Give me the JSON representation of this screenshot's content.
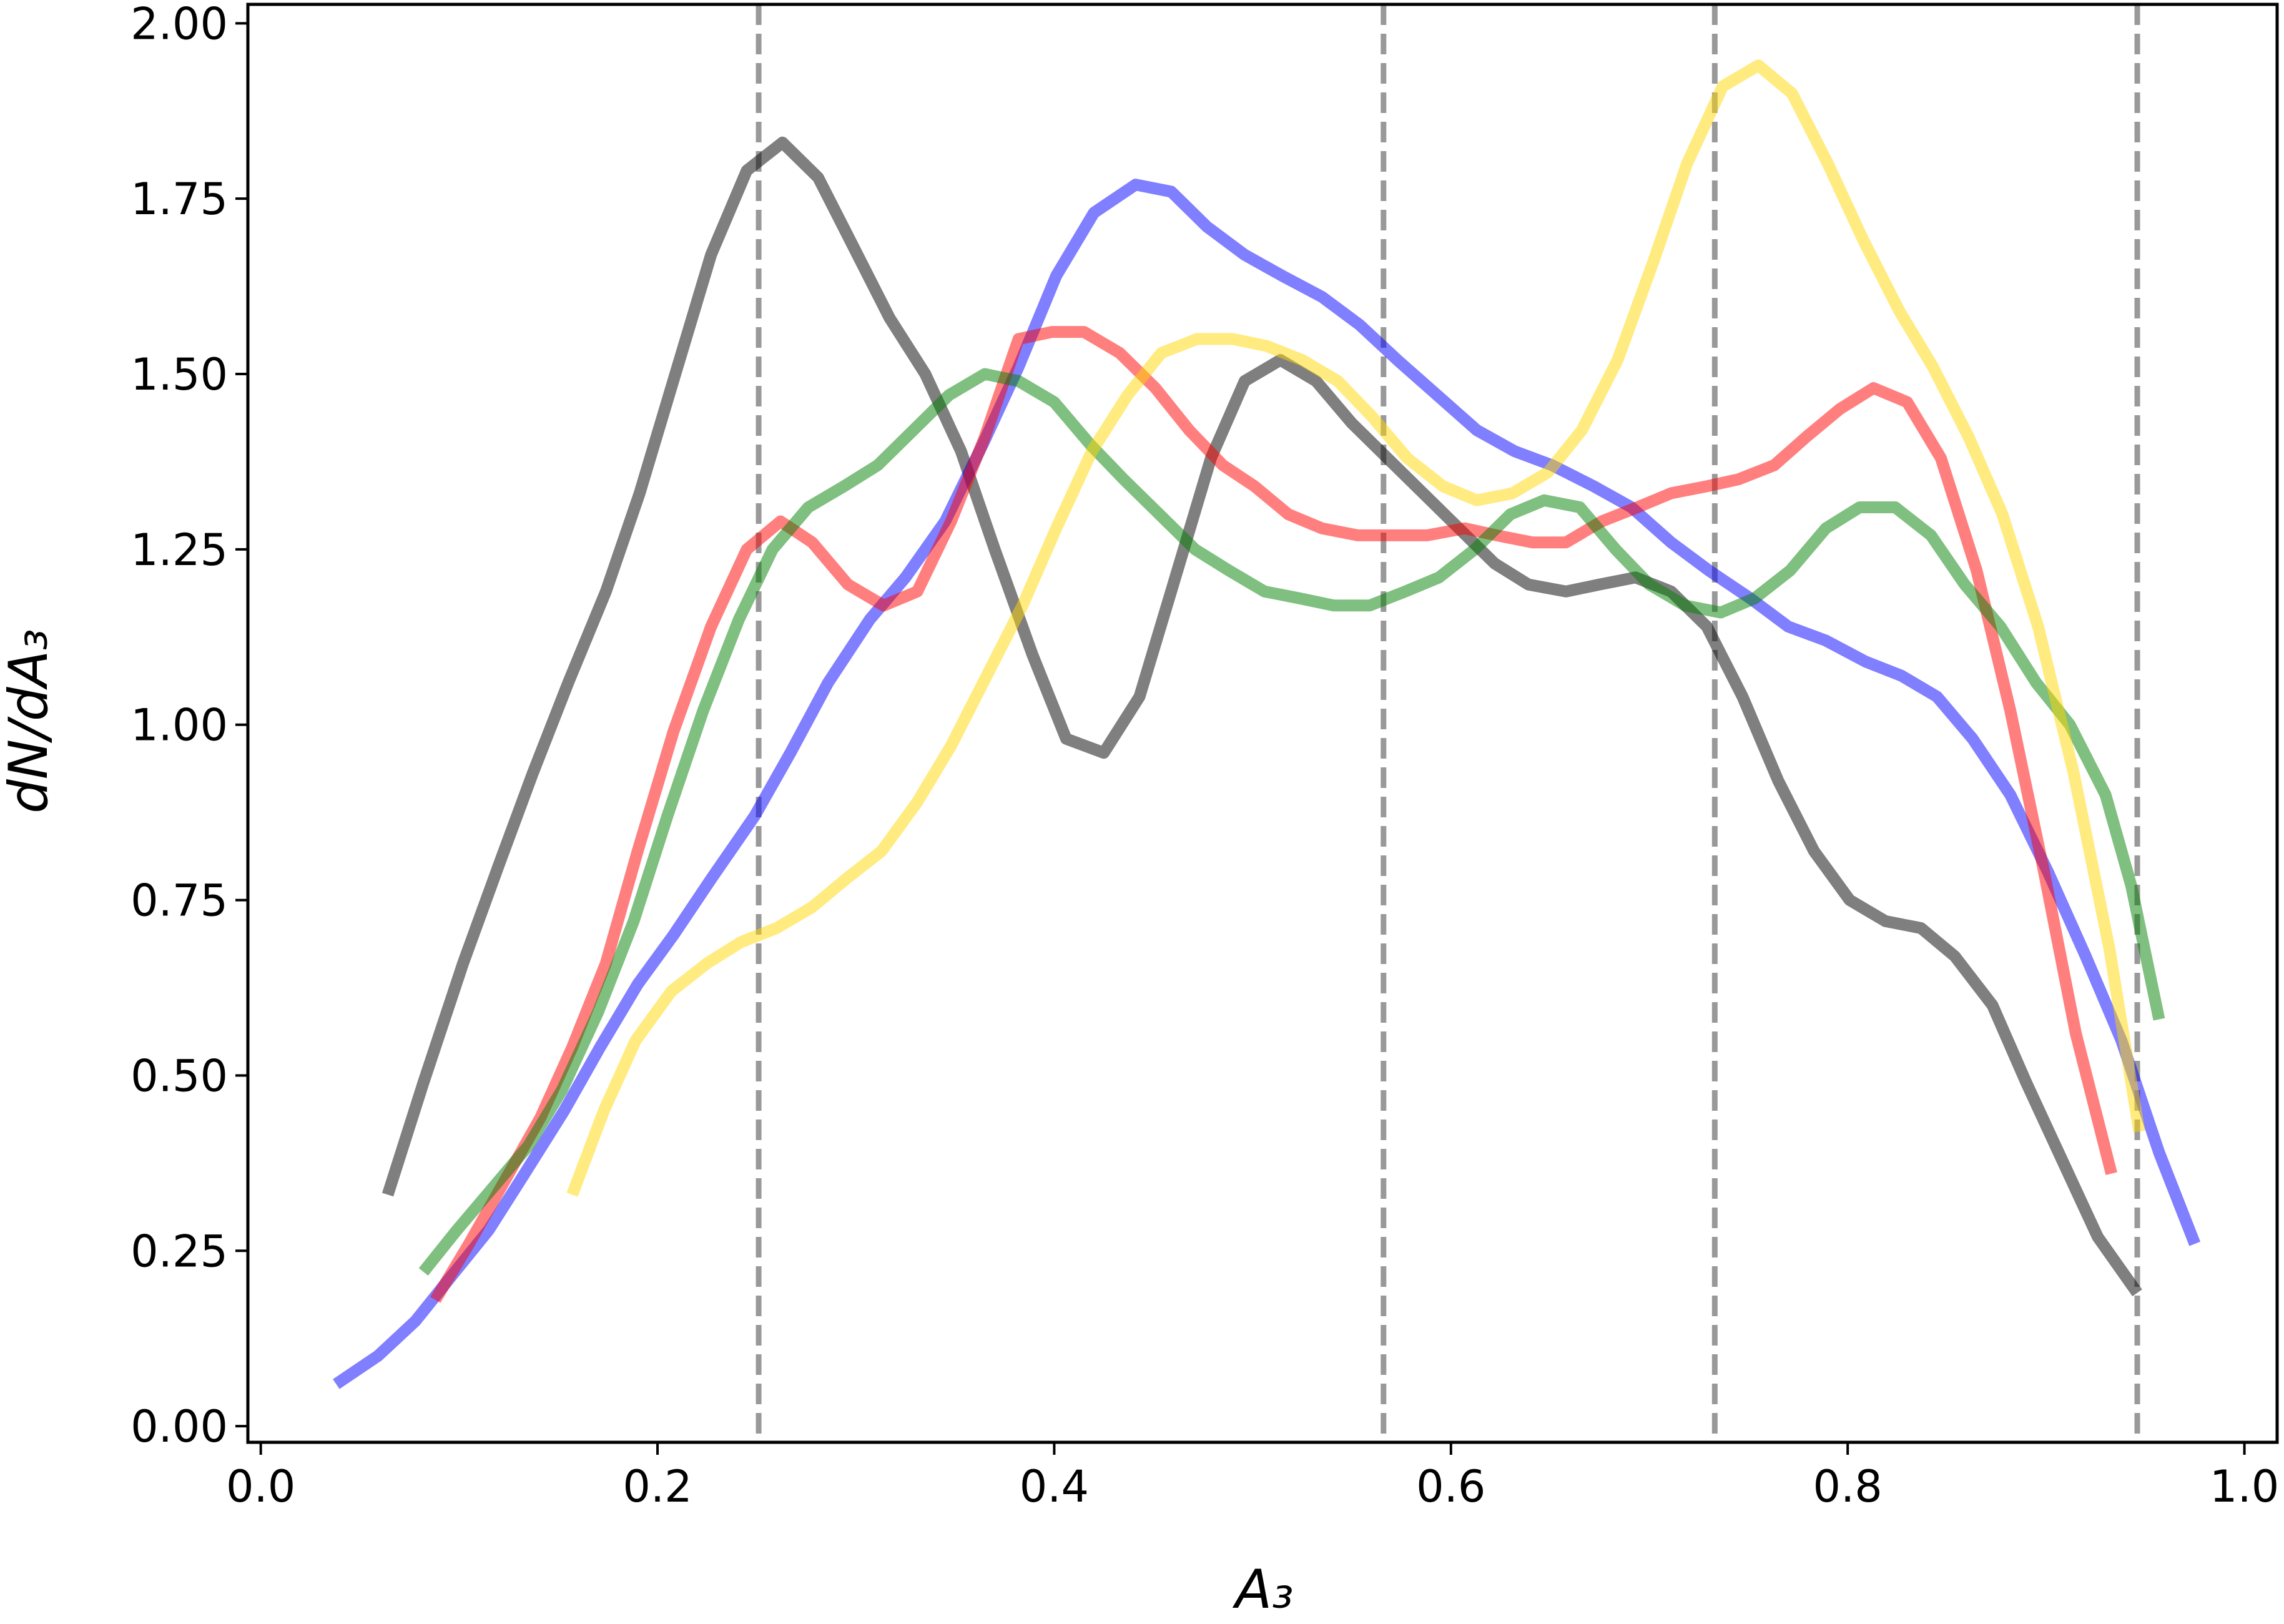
{
  "chart_data": {
    "type": "line",
    "xlabel": "A₃",
    "ylabel": "dN/dA₃",
    "xlim": [
      -0.0065,
      1.0165
    ],
    "ylim": [
      -0.023,
      2.027
    ],
    "xticks": [
      {
        "value": 0,
        "label": "0.0"
      },
      0.2,
      0.4,
      0.6,
      0.8,
      {
        "value": 1,
        "label": "1.0"
      }
    ],
    "yticks": [
      {
        "value": 0,
        "label": "0.00"
      },
      0.25,
      {
        "value": 0.5,
        "label": "0.50"
      },
      0.75,
      {
        "value": 1,
        "label": "1.00"
      },
      1.25,
      {
        "value": 1.5,
        "label": "1.50"
      },
      1.75,
      {
        "value": 2,
        "label": "2.00"
      }
    ],
    "vlines": [
      0.251,
      0.566,
      0.733,
      0.946
    ],
    "vline_color": "#999999",
    "series": [
      {
        "color": "#000000",
        "x": [
          0.064,
          0.082,
          0.102,
          0.12,
          0.137,
          0.155,
          0.174,
          0.191,
          0.209,
          0.227,
          0.245,
          0.263,
          0.281,
          0.299,
          0.317,
          0.335,
          0.353,
          0.37,
          0.389,
          0.406,
          0.425,
          0.443,
          0.46,
          0.479,
          0.496,
          0.514,
          0.532,
          0.55,
          0.568,
          0.586,
          0.604,
          0.622,
          0.639,
          0.658,
          0.675,
          0.693,
          0.711,
          0.729,
          0.747,
          0.765,
          0.783,
          0.801,
          0.819,
          0.837,
          0.854,
          0.873,
          0.89,
          0.908,
          0.926,
          0.946
        ],
        "values": [
          0.33,
          0.49,
          0.66,
          0.8,
          0.93,
          1.06,
          1.19,
          1.33,
          1.5,
          1.67,
          1.79,
          1.83,
          1.78,
          1.68,
          1.58,
          1.5,
          1.39,
          1.25,
          1.1,
          0.98,
          0.96,
          1.04,
          1.2,
          1.38,
          1.49,
          1.52,
          1.49,
          1.43,
          1.38,
          1.33,
          1.28,
          1.23,
          1.2,
          1.19,
          1.2,
          1.21,
          1.19,
          1.14,
          1.04,
          0.92,
          0.82,
          0.75,
          0.72,
          0.71,
          0.67,
          0.6,
          0.49,
          0.38,
          0.27,
          0.19
        ]
      },
      {
        "color": "#0000ff",
        "x": [
          0.038,
          0.059,
          0.078,
          0.095,
          0.115,
          0.133,
          0.153,
          0.171,
          0.19,
          0.208,
          0.227,
          0.249,
          0.267,
          0.286,
          0.307,
          0.325,
          0.345,
          0.364,
          0.382,
          0.401,
          0.42,
          0.441,
          0.459,
          0.477,
          0.496,
          0.515,
          0.535,
          0.554,
          0.573,
          0.593,
          0.613,
          0.632,
          0.651,
          0.672,
          0.691,
          0.711,
          0.73,
          0.751,
          0.77,
          0.789,
          0.809,
          0.827,
          0.845,
          0.863,
          0.882,
          0.901,
          0.92,
          0.938,
          0.957,
          0.975
        ],
        "values": [
          0.06,
          0.1,
          0.15,
          0.21,
          0.28,
          0.36,
          0.45,
          0.54,
          0.63,
          0.7,
          0.78,
          0.87,
          0.96,
          1.06,
          1.15,
          1.21,
          1.29,
          1.4,
          1.51,
          1.64,
          1.73,
          1.77,
          1.76,
          1.71,
          1.67,
          1.64,
          1.61,
          1.57,
          1.52,
          1.47,
          1.42,
          1.39,
          1.37,
          1.34,
          1.31,
          1.26,
          1.22,
          1.18,
          1.14,
          1.12,
          1.09,
          1.07,
          1.04,
          0.98,
          0.9,
          0.79,
          0.67,
          0.55,
          0.39,
          0.26
        ]
      },
      {
        "color": "#ff0000",
        "x": [
          0.088,
          0.105,
          0.123,
          0.141,
          0.157,
          0.174,
          0.19,
          0.208,
          0.227,
          0.245,
          0.262,
          0.278,
          0.296,
          0.314,
          0.331,
          0.348,
          0.365,
          0.382,
          0.399,
          0.415,
          0.433,
          0.451,
          0.468,
          0.485,
          0.501,
          0.518,
          0.535,
          0.553,
          0.571,
          0.588,
          0.607,
          0.623,
          0.641,
          0.658,
          0.676,
          0.694,
          0.711,
          0.729,
          0.745,
          0.763,
          0.779,
          0.796,
          0.813,
          0.83,
          0.847,
          0.865,
          0.882,
          0.899,
          0.915,
          0.933
        ],
        "values": [
          0.18,
          0.26,
          0.35,
          0.44,
          0.54,
          0.66,
          0.82,
          0.99,
          1.14,
          1.25,
          1.29,
          1.26,
          1.2,
          1.17,
          1.19,
          1.29,
          1.41,
          1.55,
          1.56,
          1.56,
          1.53,
          1.48,
          1.42,
          1.37,
          1.34,
          1.3,
          1.28,
          1.27,
          1.27,
          1.27,
          1.28,
          1.27,
          1.26,
          1.26,
          1.29,
          1.31,
          1.33,
          1.34,
          1.35,
          1.37,
          1.41,
          1.45,
          1.48,
          1.46,
          1.38,
          1.22,
          1.02,
          0.79,
          0.56,
          0.36
        ]
      },
      {
        "color": "#008000",
        "x": [
          0.082,
          0.099,
          0.117,
          0.135,
          0.152,
          0.17,
          0.188,
          0.205,
          0.223,
          0.241,
          0.258,
          0.276,
          0.294,
          0.311,
          0.329,
          0.347,
          0.365,
          0.382,
          0.4,
          0.418,
          0.435,
          0.453,
          0.471,
          0.488,
          0.506,
          0.524,
          0.541,
          0.559,
          0.577,
          0.594,
          0.612,
          0.63,
          0.647,
          0.665,
          0.683,
          0.7,
          0.718,
          0.736,
          0.753,
          0.771,
          0.789,
          0.806,
          0.824,
          0.842,
          0.859,
          0.877,
          0.895,
          0.912,
          0.93,
          0.943,
          0.957
        ],
        "values": [
          0.22,
          0.28,
          0.34,
          0.4,
          0.48,
          0.59,
          0.72,
          0.87,
          1.02,
          1.15,
          1.25,
          1.31,
          1.34,
          1.37,
          1.42,
          1.47,
          1.5,
          1.49,
          1.46,
          1.4,
          1.35,
          1.3,
          1.25,
          1.22,
          1.19,
          1.18,
          1.17,
          1.17,
          1.19,
          1.21,
          1.25,
          1.3,
          1.32,
          1.31,
          1.25,
          1.2,
          1.17,
          1.16,
          1.18,
          1.22,
          1.28,
          1.31,
          1.31,
          1.27,
          1.2,
          1.14,
          1.06,
          1.0,
          0.9,
          0.77,
          0.58
        ]
      },
      {
        "color": "#ffd700",
        "x": [
          0.157,
          0.173,
          0.189,
          0.207,
          0.225,
          0.242,
          0.26,
          0.278,
          0.295,
          0.313,
          0.331,
          0.348,
          0.366,
          0.384,
          0.401,
          0.419,
          0.437,
          0.454,
          0.472,
          0.49,
          0.507,
          0.525,
          0.543,
          0.56,
          0.578,
          0.596,
          0.613,
          0.631,
          0.649,
          0.666,
          0.684,
          0.702,
          0.719,
          0.737,
          0.755,
          0.772,
          0.79,
          0.808,
          0.826,
          0.843,
          0.861,
          0.878,
          0.896,
          0.914,
          0.932,
          0.947
        ],
        "values": [
          0.33,
          0.45,
          0.55,
          0.62,
          0.66,
          0.69,
          0.71,
          0.74,
          0.78,
          0.82,
          0.89,
          0.97,
          1.07,
          1.17,
          1.28,
          1.39,
          1.47,
          1.53,
          1.55,
          1.55,
          1.54,
          1.52,
          1.49,
          1.44,
          1.38,
          1.34,
          1.32,
          1.33,
          1.36,
          1.42,
          1.52,
          1.66,
          1.8,
          1.91,
          1.94,
          1.9,
          1.8,
          1.69,
          1.59,
          1.51,
          1.41,
          1.3,
          1.14,
          0.93,
          0.68,
          0.42
        ]
      }
    ]
  }
}
